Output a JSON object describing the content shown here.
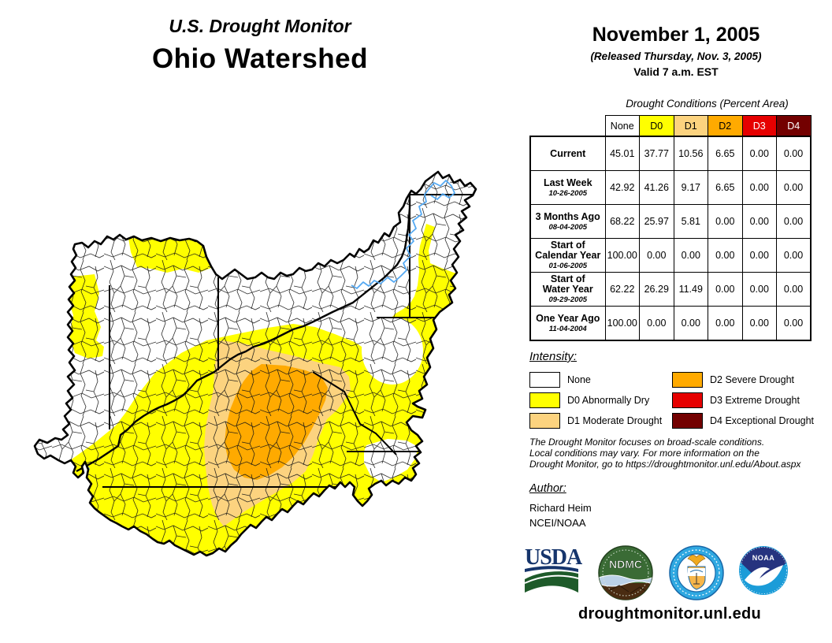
{
  "title": {
    "line1": "U.S. Drought Monitor",
    "line2": "Ohio Watershed"
  },
  "header": {
    "date": "November 1, 2005",
    "released": "(Released Thursday, Nov. 3, 2005)",
    "valid": "Valid 7 a.m. EST"
  },
  "colors": {
    "none": "#FFFFFF",
    "d0": "#FFFF00",
    "d1": "#FCD37F",
    "d2": "#FFAA00",
    "d3": "#E60000",
    "d4": "#730000",
    "river": "#55A9F2",
    "boundary": "#000000"
  },
  "table": {
    "caption": "Drought Conditions (Percent Area)",
    "columns": [
      {
        "label": "None",
        "bg": "#FFFFFF",
        "fg": "#000000"
      },
      {
        "label": "D0",
        "bg": "#FFFF00",
        "fg": "#000000"
      },
      {
        "label": "D1",
        "bg": "#FCD37F",
        "fg": "#000000"
      },
      {
        "label": "D2",
        "bg": "#FFAA00",
        "fg": "#000000"
      },
      {
        "label": "D3",
        "bg": "#E60000",
        "fg": "#FFFFFF"
      },
      {
        "label": "D4",
        "bg": "#730000",
        "fg": "#FFFFFF"
      }
    ],
    "rows": [
      {
        "label": "Current",
        "date": "",
        "values": [
          "45.01",
          "37.77",
          "10.56",
          "6.65",
          "0.00",
          "0.00"
        ]
      },
      {
        "label": "Last Week",
        "date": "10-26-2005",
        "values": [
          "42.92",
          "41.26",
          "9.17",
          "6.65",
          "0.00",
          "0.00"
        ]
      },
      {
        "label": "3 Months Ago",
        "date": "08-04-2005",
        "values": [
          "68.22",
          "25.97",
          "5.81",
          "0.00",
          "0.00",
          "0.00"
        ]
      },
      {
        "label": "Start of\nCalendar Year",
        "date": "01-06-2005",
        "values": [
          "100.00",
          "0.00",
          "0.00",
          "0.00",
          "0.00",
          "0.00"
        ]
      },
      {
        "label": "Start of\nWater Year",
        "date": "09-29-2005",
        "values": [
          "62.22",
          "26.29",
          "11.49",
          "0.00",
          "0.00",
          "0.00"
        ]
      },
      {
        "label": "One Year Ago",
        "date": "11-04-2004",
        "values": [
          "100.00",
          "0.00",
          "0.00",
          "0.00",
          "0.00",
          "0.00"
        ]
      }
    ]
  },
  "legend": {
    "heading": "Intensity:",
    "items": [
      {
        "label": "None",
        "color": "#FFFFFF"
      },
      {
        "label": "D0 Abnormally Dry",
        "color": "#FFFF00"
      },
      {
        "label": "D1 Moderate Drought",
        "color": "#FCD37F"
      },
      {
        "label": "D2 Severe Drought",
        "color": "#FFAA00"
      },
      {
        "label": "D3 Extreme Drought",
        "color": "#E60000"
      },
      {
        "label": "D4 Exceptional Drought",
        "color": "#730000"
      }
    ]
  },
  "disclaimer": {
    "line1": "The Drought Monitor focuses on broad-scale conditions.",
    "line2": "Local conditions may vary. For more information on the",
    "line3": "Drought Monitor, go to https://droughtmonitor.unl.edu/About.aspx"
  },
  "author": {
    "heading": "Author:",
    "name": "Richard Heim",
    "org": "NCEI/NOAA"
  },
  "footer": {
    "url": "droughtmonitor.unl.edu",
    "logos": [
      "USDA",
      "NDMC",
      "Department of Commerce",
      "NOAA"
    ],
    "ndmc_text": "NDMC",
    "noaa_text": "NOAA"
  }
}
